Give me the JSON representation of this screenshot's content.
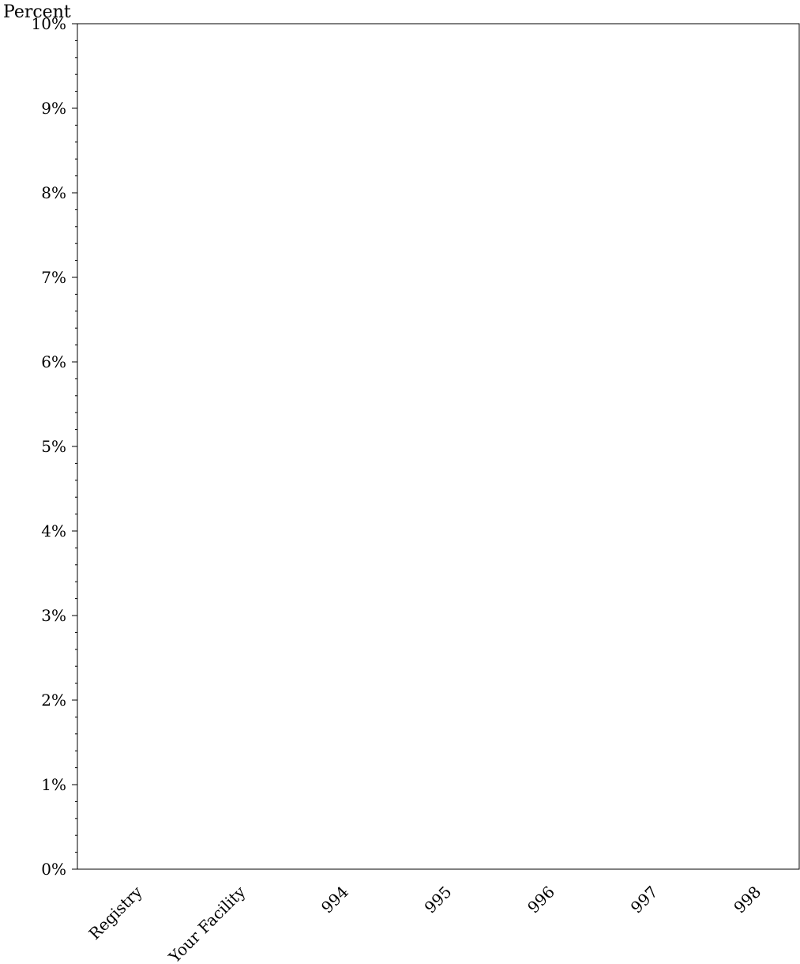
{
  "chart_data": {
    "type": "bar",
    "ylabel": "Percent",
    "categories": [
      "Registry",
      "Your Facility",
      "994",
      "995",
      "996",
      "997",
      "998"
    ],
    "values": [
      0,
      0,
      0,
      0,
      0,
      0,
      0
    ],
    "ylim": [
      0,
      10
    ],
    "y_ticks": [
      "0%",
      "1%",
      "2%",
      "3%",
      "4%",
      "5%",
      "6%",
      "7%",
      "8%",
      "9%",
      "10%"
    ],
    "y_minor_ticks_per_major": 5,
    "grid": false,
    "colors": {
      "axis": "#000000",
      "background": "#ffffff"
    }
  }
}
